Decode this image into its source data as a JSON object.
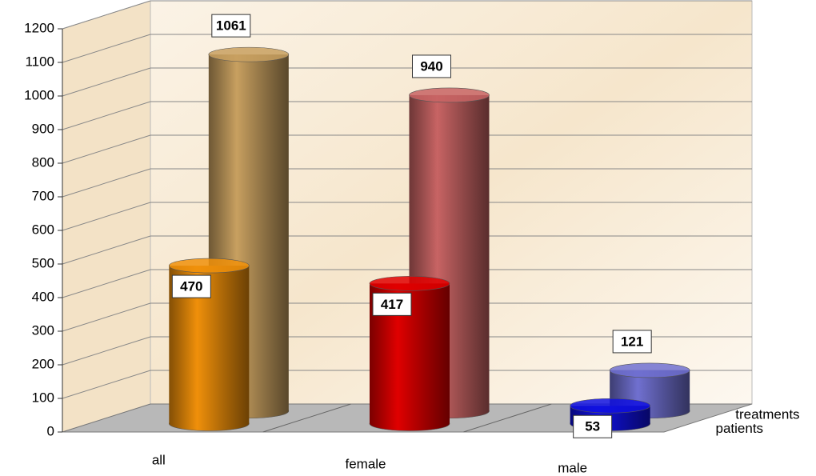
{
  "chart_data": {
    "type": "bar3d",
    "categories": [
      "all",
      "female",
      "male"
    ],
    "series": [
      {
        "name": "patients",
        "colors": [
          "#f0900a",
          "#e00000",
          "#1010e0"
        ],
        "values": [
          470,
          417,
          53
        ]
      },
      {
        "name": "treatments",
        "colors": [
          "#c8a060",
          "#c86464",
          "#7070d0"
        ],
        "values": [
          1061,
          940,
          121
        ]
      }
    ],
    "ylim": [
      0,
      1200
    ],
    "yticks": [
      0,
      100,
      200,
      300,
      400,
      500,
      600,
      700,
      800,
      900,
      1000,
      1100,
      1200
    ],
    "grid": true
  }
}
